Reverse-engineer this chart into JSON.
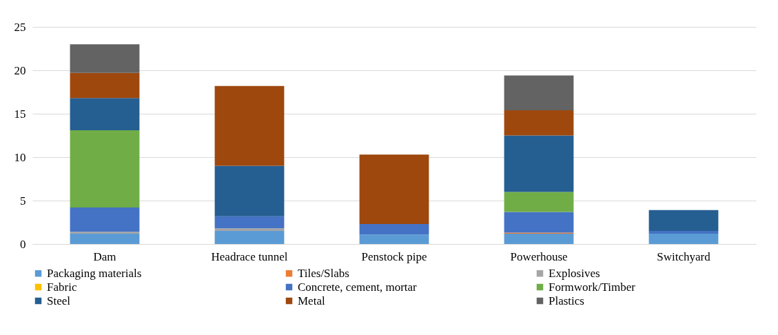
{
  "chart_data": {
    "type": "bar",
    "stacked": true,
    "categories": [
      "Dam",
      "Headrace tunnel",
      "Penstock pipe",
      "Powerhouse",
      "Switchyard"
    ],
    "series": [
      {
        "name": "Packaging materials",
        "color": "#5b9bd5",
        "values": [
          1.2,
          1.5,
          1.1,
          1.2,
          1.2
        ]
      },
      {
        "name": "Tiles/Slabs",
        "color": "#ed7d31",
        "values": [
          null,
          null,
          null,
          0.1,
          null
        ]
      },
      {
        "name": "Explosives",
        "color": "#a5a5a5",
        "values": [
          0.2,
          0.3,
          null,
          null,
          null
        ]
      },
      {
        "name": "Fabric",
        "color": "#ffc000",
        "values": [
          null,
          null,
          null,
          null,
          null
        ]
      },
      {
        "name": "Concrete, cement, mortar",
        "color": "#4472c4",
        "values": [
          2.8,
          1.4,
          1.2,
          2.4,
          0.3
        ]
      },
      {
        "name": "Formwork/Timber",
        "color": "#70ad47",
        "values": [
          8.9,
          null,
          null,
          2.3,
          null
        ]
      },
      {
        "name": "Steel",
        "color": "#255e91",
        "values": [
          3.7,
          5.8,
          null,
          6.5,
          2.4
        ]
      },
      {
        "name": "Metal",
        "color": "#9e480e",
        "values": [
          2.9,
          9.2,
          8.0,
          2.9,
          null
        ]
      },
      {
        "name": "Plastics",
        "color": "#636363",
        "values": [
          3.3,
          null,
          null,
          4.0,
          null
        ]
      }
    ],
    "ylim": [
      0,
      25
    ],
    "yticks": [
      0,
      5,
      10,
      15,
      20,
      25
    ],
    "grid": "y",
    "legend": "bottom"
  }
}
